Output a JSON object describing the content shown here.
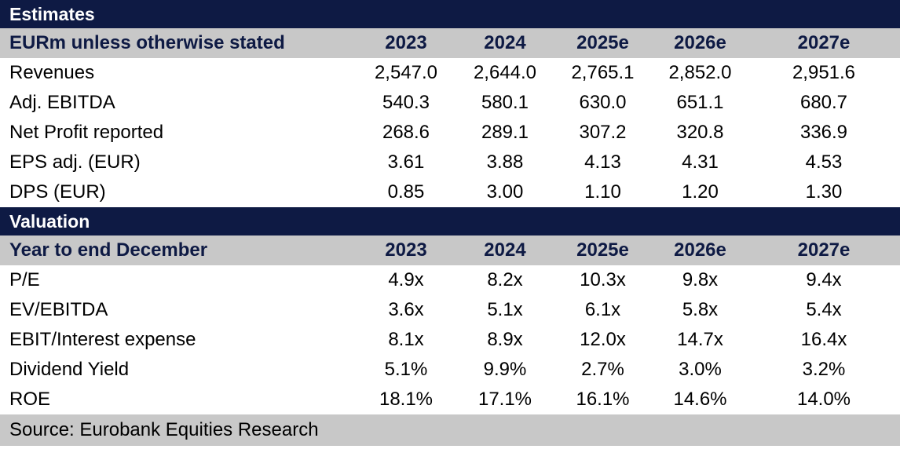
{
  "estimates": {
    "title": "Estimates",
    "header": {
      "label": "EURm unless otherwise stated",
      "years": [
        "2023",
        "2024",
        "2025e",
        "2026e",
        "2027e"
      ]
    },
    "rows": [
      {
        "label": "Revenues",
        "values": [
          "2,547.0",
          "2,644.0",
          "2,765.1",
          "2,852.0",
          "2,951.6"
        ]
      },
      {
        "label": "Adj. EBITDA",
        "values": [
          "540.3",
          "580.1",
          "630.0",
          "651.1",
          "680.7"
        ]
      },
      {
        "label": "Net Profit reported",
        "values": [
          "268.6",
          "289.1",
          "307.2",
          "320.8",
          "336.9"
        ]
      },
      {
        "label": "EPS adj. (EUR)",
        "values": [
          "3.61",
          "3.88",
          "4.13",
          "4.31",
          "4.53"
        ]
      },
      {
        "label": "DPS (EUR)",
        "values": [
          "0.85",
          "3.00",
          "1.10",
          "1.20",
          "1.30"
        ]
      }
    ]
  },
  "valuation": {
    "title": "Valuation",
    "header": {
      "label": "Year to end December",
      "years": [
        "2023",
        "2024",
        "2025e",
        "2026e",
        "2027e"
      ]
    },
    "rows": [
      {
        "label": "P/E",
        "values": [
          "4.9x",
          "8.2x",
          "10.3x",
          "9.8x",
          "9.4x"
        ]
      },
      {
        "label": "EV/EBITDA",
        "values": [
          "3.6x",
          "5.1x",
          "6.1x",
          "5.8x",
          "5.4x"
        ]
      },
      {
        "label": "EBIT/Interest expense",
        "values": [
          "8.1x",
          "8.9x",
          "12.0x",
          "14.7x",
          "16.4x"
        ]
      },
      {
        "label": "Dividend Yield",
        "values": [
          "5.1%",
          "9.9%",
          "2.7%",
          "3.0%",
          "3.2%"
        ]
      },
      {
        "label": "ROE",
        "values": [
          "18.1%",
          "17.1%",
          "16.1%",
          "14.6%",
          "14.0%"
        ]
      }
    ]
  },
  "footer": {
    "source": "Source: Eurobank Equities Research"
  },
  "colors": {
    "title_bar": "#0e1a44",
    "header_bar": "#c8c8c8",
    "header_text": "#0e1a44"
  }
}
